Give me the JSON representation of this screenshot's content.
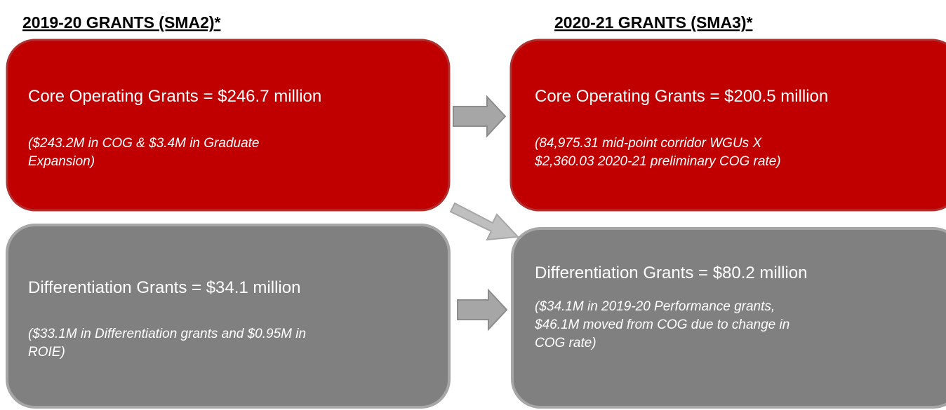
{
  "columns": [
    {
      "heading": "2019-20 GRANTS (SMA2)*",
      "boxes": [
        {
          "title": "Core Operating Grants = $246.7 million",
          "note": [
            "($243.2M in COG & $3.4M in Graduate",
            "Expansion)"
          ]
        },
        {
          "title": "Differentiation Grants = $34.1 million",
          "note": [
            "($33.1M in Differentiation grants and $0.95M in",
            "ROIE)"
          ]
        }
      ]
    },
    {
      "heading": "2020-21 GRANTS (SMA3)*",
      "boxes": [
        {
          "title": "Core Operating Grants = $200.5 million",
          "note": [
            "(84,975.31 mid-point corridor WGUs X",
            "$2,360.03 2020-21 preliminary COG rate)"
          ]
        },
        {
          "title": "Differentiation Grants = $80.2 million",
          "note": [
            "($34.1M in 2019-20 Performance grants,",
            "$46.1M moved from COG due to change in",
            "COG rate)"
          ]
        }
      ]
    }
  ]
}
